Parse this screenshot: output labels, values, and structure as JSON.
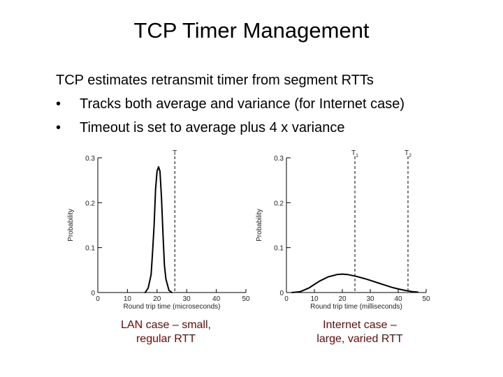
{
  "slide": {
    "title": "TCP Timer Management",
    "lead": "TCP estimates retransmit timer from segment RTTs",
    "bullets": [
      {
        "marker": "•",
        "text": "Tracks both average and variance (for Internet case)"
      },
      {
        "marker": "•",
        "text": "Timeout is set to average plus 4 x variance"
      }
    ]
  },
  "captions": {
    "left": [
      "LAN case – small,",
      "regular RTT"
    ],
    "right": [
      "Internet case –",
      "large, varied RTT"
    ]
  },
  "colors": {
    "caption": "#800000",
    "curve": "#000000"
  },
  "chart_data": [
    {
      "type": "line",
      "ylabel": "Probability",
      "xlabel": "Round trip time (microseconds)",
      "x_ticks": [
        0,
        10,
        20,
        30,
        40,
        50
      ],
      "y_ticks": [
        0,
        0.1,
        0.2,
        0.3
      ],
      "y_tick_labels": [
        "0",
        "0.1",
        "0.2",
        "0.3"
      ],
      "xlim": [
        0,
        50
      ],
      "ylim": [
        0,
        0.3
      ],
      "series": [
        {
          "x": [
            16,
            17,
            18,
            18.5,
            19,
            19.5,
            20,
            20.5,
            21,
            21.5,
            22,
            22.5,
            23,
            24,
            25
          ],
          "y": [
            0,
            0.01,
            0.04,
            0.09,
            0.15,
            0.23,
            0.27,
            0.28,
            0.27,
            0.21,
            0.13,
            0.06,
            0.03,
            0.005,
            0
          ]
        }
      ],
      "markers": [
        {
          "label": "T",
          "x": 26
        }
      ]
    },
    {
      "type": "line",
      "ylabel": "Probability",
      "xlabel": "Round trip time (milliseconds)",
      "x_ticks": [
        0,
        10,
        20,
        30,
        40,
        50
      ],
      "y_ticks": [
        0,
        0.1,
        0.2,
        0.3
      ],
      "y_tick_labels": [
        "0",
        "0.1",
        "0.2",
        "0.3"
      ],
      "xlim": [
        0,
        50
      ],
      "ylim": [
        0,
        0.3
      ],
      "series": [
        {
          "x": [
            2,
            5,
            8,
            10,
            12,
            15,
            18,
            20,
            22,
            25,
            28,
            30,
            33,
            35,
            38,
            40,
            43,
            45,
            47
          ],
          "y": [
            0,
            0.002,
            0.01,
            0.018,
            0.026,
            0.035,
            0.04,
            0.041,
            0.04,
            0.036,
            0.031,
            0.027,
            0.021,
            0.017,
            0.011,
            0.008,
            0.004,
            0.002,
            0.001
          ]
        }
      ],
      "markers": [
        {
          "label": "T1",
          "x": 24.5
        },
        {
          "label": "T2",
          "x": 43.5
        }
      ]
    }
  ]
}
